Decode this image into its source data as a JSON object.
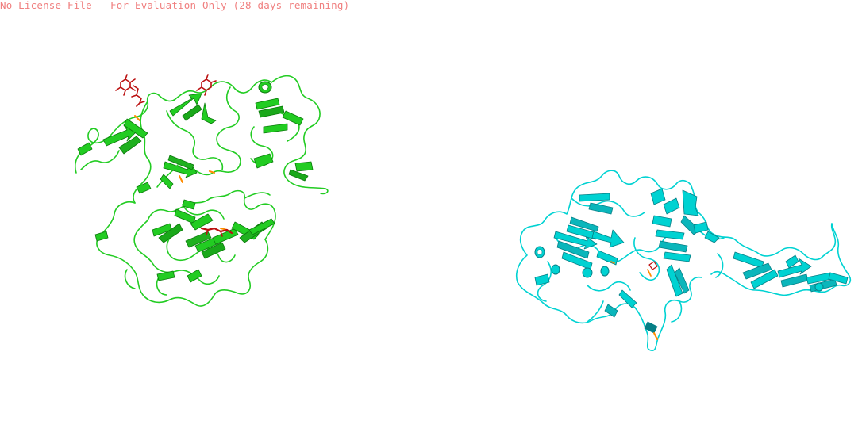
{
  "watermark": {
    "text": "No License File - For Evaluation Only (28 days remaining)",
    "color": "#f08080"
  },
  "background_color": "#ffffff",
  "structures": [
    {
      "id": "protein-left",
      "cartoon_color": "#22cc22",
      "sheet_color": "#1fd81f",
      "dark_color": "#0b7a0b",
      "ligand_color": "#bb1111",
      "accent_color": "#ff8c00"
    },
    {
      "id": "protein-right",
      "cartoon_color": "#00d2d2",
      "sheet_color": "#12d6d6",
      "dark_color": "#067f86",
      "ligand_color": "#bb1111",
      "accent_color": "#ff8c00"
    }
  ]
}
